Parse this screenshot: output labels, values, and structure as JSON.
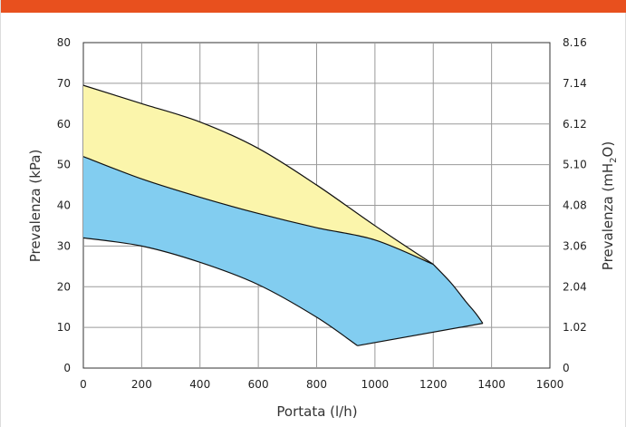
{
  "chart_data": {
    "type": "area",
    "xlabel": "Portata (l/h)",
    "ylabel": "Prevalenza (kPa)",
    "ylabel_right": "Prevalenza (mH2O)",
    "xlim": [
      0,
      1600
    ],
    "ylim": [
      0,
      80
    ],
    "x_ticks": [
      "0",
      "200",
      "400",
      "600",
      "800",
      "1000",
      "1200",
      "1400",
      "1600"
    ],
    "y_ticks": [
      "0",
      "10",
      "20",
      "30",
      "40",
      "50",
      "60",
      "70",
      "80"
    ],
    "y2_ticks": [
      "0",
      "1.02",
      "2.04",
      "3.06",
      "4.08",
      "5.10",
      "6.12",
      "7.14",
      "8.16"
    ],
    "grid": true,
    "colors": {
      "yellow_region": "#fbf5ab",
      "blue_region": "#82cdf0",
      "outline": "#111111",
      "header_bar": "#e8501e"
    },
    "curves": {
      "upper": [
        [
          0,
          69.5
        ],
        [
          200,
          65
        ],
        [
          400,
          60.5
        ],
        [
          600,
          54
        ],
        [
          800,
          45
        ],
        [
          1000,
          35
        ],
        [
          1200,
          25.5
        ]
      ],
      "middle": [
        [
          0,
          52
        ],
        [
          200,
          46.5
        ],
        [
          400,
          42
        ],
        [
          600,
          38
        ],
        [
          800,
          34.5
        ],
        [
          1000,
          31.5
        ],
        [
          1200,
          25.5
        ]
      ],
      "envelope": [
        [
          1200,
          25.5
        ],
        [
          1260,
          21
        ],
        [
          1310,
          16.5
        ],
        [
          1345,
          13.5
        ],
        [
          1370,
          11
        ]
      ],
      "lower": [
        [
          0,
          32
        ],
        [
          200,
          30
        ],
        [
          400,
          26
        ],
        [
          600,
          20.5
        ],
        [
          800,
          12.5
        ],
        [
          940,
          5.5
        ]
      ],
      "bottom_line": [
        [
          940,
          5.5
        ],
        [
          1370,
          11
        ]
      ]
    }
  }
}
